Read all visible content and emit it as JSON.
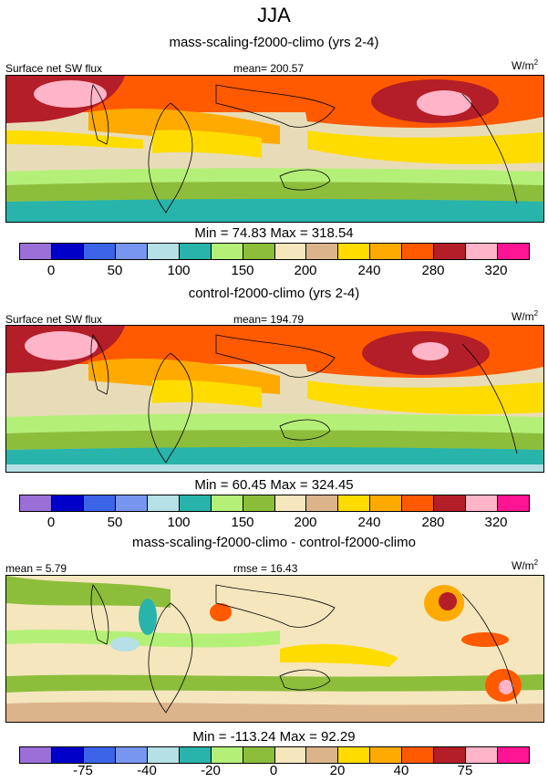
{
  "title": "JJA",
  "colorbar_colors": [
    "#9a6fd8",
    "#0000c8",
    "#3c64e6",
    "#7896f0",
    "#b4e0e6",
    "#28b4aa",
    "#b4f078",
    "#8cbe3c",
    "#f5e6be",
    "#dcb48c",
    "#ffdc00",
    "#ffaa00",
    "#ff5a00",
    "#b41e28",
    "#ffb4c8",
    "#ff1493"
  ],
  "panels": [
    {
      "subtitle": "mass-scaling-f2000-climo (yrs 2-4)",
      "left_label": "Surface net SW flux",
      "center_label": "mean= 200.57",
      "units": "W/m",
      "units_sup": "2",
      "min_max": "Min =  74.83 Max = 318.54",
      "ticks": [
        "0",
        "50",
        "100",
        "150",
        "200",
        "240",
        "280",
        "320"
      ]
    },
    {
      "subtitle": "control-f2000-climo (yrs 2-4)",
      "left_label": "Surface net SW flux",
      "center_label": "mean= 194.79",
      "units": "W/m",
      "units_sup": "2",
      "min_max": "Min =  60.45 Max = 324.45",
      "ticks": [
        "0",
        "50",
        "100",
        "150",
        "200",
        "240",
        "280",
        "320"
      ]
    },
    {
      "subtitle": "mass-scaling-f2000-climo - control-f2000-climo",
      "left_label": "mean =   5.79",
      "center_label": "rmse =  16.43",
      "units": "W/m",
      "units_sup": "2",
      "min_max": "Min = -113.24 Max =  92.29",
      "ticks": [
        "-75",
        "-40",
        "-20",
        "0",
        "20",
        "40",
        "75"
      ]
    }
  ],
  "chart_data": [
    {
      "type": "heatmap",
      "title": "JJA",
      "subtitle": "mass-scaling-f2000-climo (yrs 2-4)",
      "variable": "Surface net SW flux",
      "units": "W/m2",
      "mean": 200.57,
      "min": 74.83,
      "max": 318.54,
      "colorbar_ticks": [
        0,
        50,
        100,
        150,
        200,
        240,
        280,
        320
      ]
    },
    {
      "type": "heatmap",
      "subtitle": "control-f2000-climo (yrs 2-4)",
      "variable": "Surface net SW flux",
      "units": "W/m2",
      "mean": 194.79,
      "min": 60.45,
      "max": 324.45,
      "colorbar_ticks": [
        0,
        50,
        100,
        150,
        200,
        240,
        280,
        320
      ]
    },
    {
      "type": "heatmap",
      "subtitle": "mass-scaling-f2000-climo - control-f2000-climo",
      "units": "W/m2",
      "mean": 5.79,
      "rmse": 16.43,
      "min": -113.24,
      "max": 92.29,
      "colorbar_ticks": [
        -75,
        -40,
        -20,
        0,
        20,
        40,
        75
      ]
    }
  ]
}
